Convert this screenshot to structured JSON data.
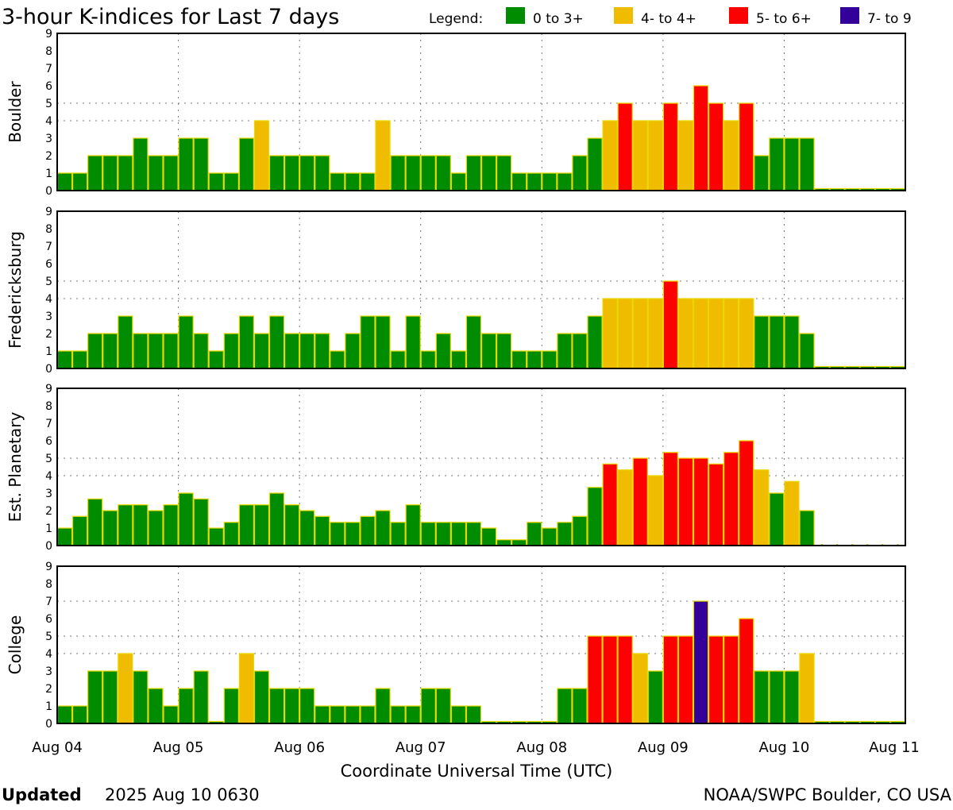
{
  "chart_data": {
    "type": "bar",
    "title": "3-hour K-indices for Last 7 days",
    "legend_title": "Legend:",
    "legend": [
      {
        "label": "0 to 3+",
        "color": "#008c00"
      },
      {
        "label": "4- to 4+",
        "color": "#f0bc00"
      },
      {
        "label": "5- to 6+",
        "color": "#ff0000"
      },
      {
        "label": "7- to 9",
        "color": "#330099"
      }
    ],
    "legend_placement": "top-right",
    "xlabel": "Coordinate Universal Time (UTC)",
    "x_ticks": [
      "Aug 04",
      "Aug 05",
      "Aug 06",
      "Aug 07",
      "Aug 08",
      "Aug 09",
      "Aug 10",
      "Aug 11"
    ],
    "interval_hours": 3,
    "ylim": [
      0,
      9
    ],
    "y_ticks": [
      "0",
      "1",
      "2",
      "3",
      "4",
      "5",
      "6",
      "7",
      "8",
      "9"
    ],
    "grid": true,
    "panels": [
      {
        "name": "Boulder",
        "hlines": [
          4,
          5
        ],
        "values": [
          1,
          1,
          2,
          2,
          2,
          3,
          2,
          2,
          3,
          3,
          1,
          1,
          3,
          4,
          2,
          2,
          2,
          2,
          1,
          1,
          1,
          4,
          2,
          2,
          2,
          2,
          1,
          2,
          2,
          2,
          1,
          1,
          1,
          1,
          2,
          3,
          4,
          5,
          4,
          4,
          5,
          4,
          6,
          5,
          4,
          5,
          2,
          3,
          3,
          3,
          0,
          0,
          0,
          0,
          0,
          0
        ]
      },
      {
        "name": "Fredericksburg",
        "hlines": [
          4,
          5
        ],
        "values": [
          1,
          1,
          2,
          2,
          3,
          2,
          2,
          2,
          3,
          2,
          1,
          2,
          3,
          2,
          3,
          2,
          2,
          2,
          1,
          2,
          3,
          3,
          1,
          3,
          1,
          2,
          1,
          3,
          2,
          2,
          1,
          1,
          1,
          2,
          2,
          3,
          4,
          4,
          4,
          4,
          5,
          4,
          4,
          4,
          4,
          4,
          3,
          3,
          3,
          2,
          0,
          0,
          0,
          0,
          0,
          0
        ]
      },
      {
        "name": "Est. Planetary",
        "hlines": [
          4,
          5
        ],
        "values": [
          1,
          1.67,
          2.67,
          2,
          2.33,
          2.33,
          2,
          2.33,
          3,
          2.67,
          1,
          1.33,
          2.33,
          2.33,
          3,
          2.33,
          2,
          1.67,
          1.33,
          1.33,
          1.67,
          2,
          1.33,
          2.33,
          1.33,
          1.33,
          1.33,
          1.33,
          1,
          0.33,
          0.33,
          1.33,
          1,
          1.33,
          1.67,
          3.33,
          4.67,
          4.33,
          5,
          4,
          5.33,
          5,
          5,
          4.67,
          5.33,
          6,
          4.33,
          3,
          3.67,
          2,
          null,
          null,
          null,
          null,
          null,
          null
        ]
      },
      {
        "name": "College",
        "hlines": [
          4,
          5,
          7
        ],
        "values": [
          1,
          1,
          3,
          3,
          4,
          3,
          2,
          1,
          2,
          3,
          0,
          2,
          4,
          3,
          2,
          2,
          2,
          1,
          1,
          1,
          1,
          2,
          1,
          1,
          2,
          2,
          1,
          1,
          0,
          0,
          0,
          0,
          0,
          2,
          2,
          5,
          5,
          5,
          4,
          3,
          5,
          5,
          7,
          5,
          5,
          6,
          3,
          3,
          3,
          4,
          0,
          0,
          0,
          0,
          0,
          0
        ]
      }
    ]
  },
  "footer": {
    "updated_label": "Updated",
    "updated_value": "2025 Aug 10 0630",
    "credit": "NOAA/SWPC Boulder, CO USA"
  }
}
